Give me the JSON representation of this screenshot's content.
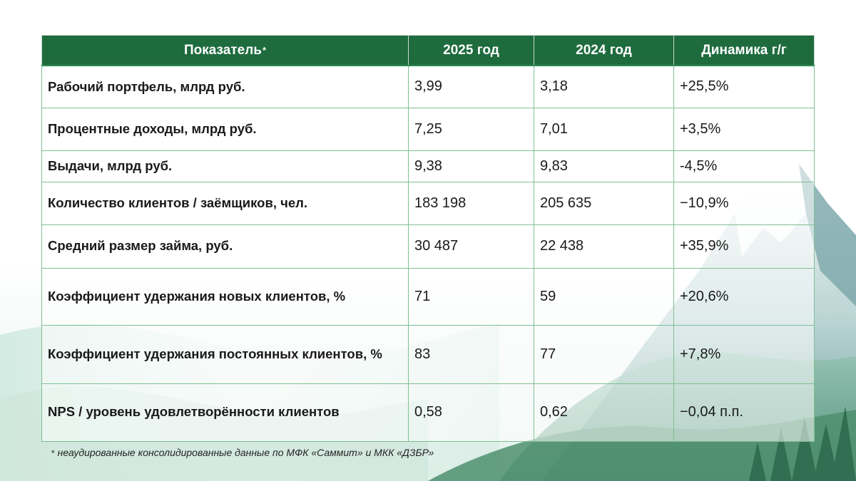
{
  "table": {
    "headers": {
      "indicator": "Показатель",
      "indicator_mark": "*",
      "y2025": "2025 год",
      "y2024": "2024 год",
      "dynamics": "Динамика г/г"
    },
    "rows": [
      {
        "label": "Рабочий портфель, млрд руб.",
        "y2025": "3,99",
        "y2024": "3,18",
        "dyn": "+25,5%"
      },
      {
        "label": "Процентные доходы, млрд руб.",
        "y2025": "7,25",
        "y2024": "7,01",
        "dyn": "+3,5%"
      },
      {
        "label": "Выдачи, млрд руб.",
        "y2025": "9,38",
        "y2024": "9,83",
        "dyn": "-4,5%"
      },
      {
        "label": "Количество клиентов / заёмщиков, чел.",
        "y2025": "183 198",
        "y2024": "205 635",
        "dyn": "−10,9%"
      },
      {
        "label": "Средний размер займа, руб.",
        "y2025": "30 487",
        "y2024": "22 438",
        "dyn": "+35,9%"
      },
      {
        "label": "Коэффициент удержания новых клиентов, %",
        "y2025": "71",
        "y2024": "59",
        "dyn": "+20,6%"
      },
      {
        "label": "Коэффициент удержания постоянных клиентов, %",
        "y2025": "83",
        "y2024": "77",
        "dyn": "+7,8%"
      },
      {
        "label": "NPS / уровень удовлетворённости клиентов",
        "y2025": "0,58",
        "y2024": "0,62",
        "dyn": "−0,04 п.п."
      }
    ]
  },
  "footnote": {
    "mark": "*",
    "text": "неаудированные консолидированные данные по МФК «Саммит» и МКК «ДЗБР»"
  },
  "colors": {
    "header_bg": "#1e6b3e",
    "grid": "#7fbf94"
  }
}
